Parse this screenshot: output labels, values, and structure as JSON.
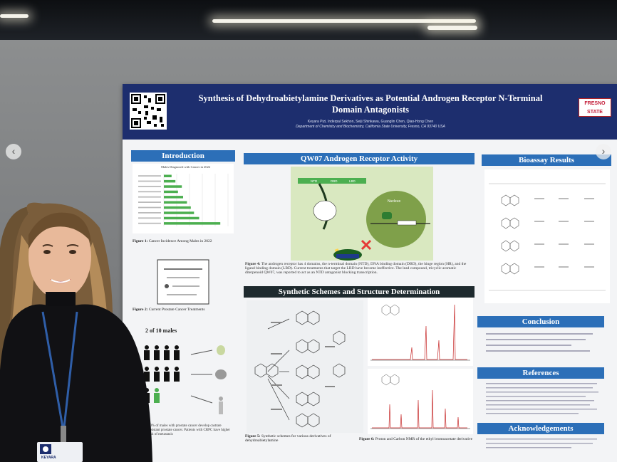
{
  "poster": {
    "title_line1": "Synthesis of Dehydroabietylamine Derivatives as Potential Androgen Receptor N-Terminal",
    "title_line2": "Domain Antagonists",
    "authors": "Keyara Pizi, Inderpal Sekhon, Seiji Shinkawa, Guanglin Chen, Qiao-Hong Chen",
    "department": "Department of Chemistry and Biochemistry, California State University, Fresno, CA 93740 USA",
    "logo_line1": "FRESNO",
    "logo_line2": "STATE",
    "sections": {
      "introduction": "Introduction",
      "qw07": "QW07 Androgen Receptor Activity",
      "bioassay": "Bioassay Results",
      "synthetic": "Synthetic Schemes and Structure Determination",
      "conclusion": "Conclusion",
      "references": "References",
      "acknowledgements": "Acknowledgements"
    },
    "figure1_caption_bold": "Figure 1:",
    "figure1_caption": " Cancer Incidence Among Males in 2022",
    "figure2_caption_bold": "Figure 2:",
    "figure2_caption": " Current Prostate Cancer Treatments",
    "stat_headline": "2 of 10 males",
    "figure4_caption_bold": "Figure 4:",
    "figure4_caption": " The androgen receptor has 4 domains, the n-terminal domain (NTD), DNA binding domain (DBD), the hinge region (HR), and the ligand binding domain (LBD). Current treatments that target the LBD have become ineffective. The lead compound, tricyclic aromatic diterpenoid QW07, was reported to act as an NTD antagonist blocking transcription.",
    "figure5_caption_bold": "Figure 5:",
    "figure5_caption": " Synthetic schemes for various derivatives of dehydroabietylamine",
    "figure6_caption_bold": "Figure 6:",
    "figure6_caption": " Proton and Carbon NMR of the ethyl bromoacetate derivative",
    "stat_bottom": "30% of males with prostate cancer develop castrate resistant prostate cancer. Patients with CRPC have higher risk of metastasis",
    "chart_title": "Males Diagnosed with Cancer in 2022",
    "chart_bar_values": [
      0.12,
      0.18,
      0.28,
      0.22,
      0.3,
      0.36,
      0.42,
      0.47,
      0.55,
      0.88
    ],
    "diagram_labels": {
      "ntd": "NTD",
      "dbd": "DBD",
      "lbd": "LBD",
      "nucleus": "Nucleus"
    }
  },
  "badge_name": "KEYARA",
  "nav": {
    "prev": "‹",
    "next": "›"
  },
  "colors": {
    "banner": "#1d2e6e",
    "section_header": "#2c6fb8",
    "section_header_dark": "#1e2a2e",
    "chart_bar": "#4caf50",
    "logo_red": "#c41e3a"
  }
}
